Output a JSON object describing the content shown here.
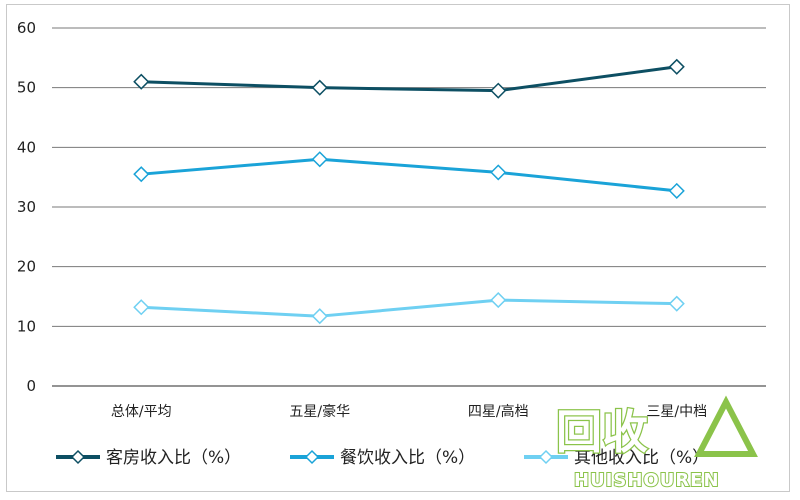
{
  "chart_data": {
    "type": "line",
    "categories": [
      "总体/平均",
      "五星/豪华",
      "四星/高档",
      "三星/中档"
    ],
    "series": [
      {
        "name": "客房收入比（%）",
        "values": [
          51.0,
          50.0,
          49.5,
          53.5
        ],
        "color": "#0d4f63"
      },
      {
        "name": "餐饮收入比（%）",
        "values": [
          35.5,
          38.0,
          35.8,
          32.7
        ],
        "color": "#1aa3d8"
      },
      {
        "name": "其他收入比（%）",
        "values": [
          13.2,
          11.7,
          14.4,
          13.8
        ],
        "color": "#6fd0f2"
      }
    ],
    "ylim": [
      0,
      60
    ],
    "yticks": [
      0,
      10,
      20,
      30,
      40,
      50,
      60
    ],
    "grid": true,
    "legend_position": "bottom",
    "title": "",
    "xlabel": "",
    "ylabel": ""
  },
  "watermark": {
    "text_main": "回收",
    "text_sub": "HUISHOUREN",
    "color": "#8bc34a",
    "icon": "recycle-triangle-icon"
  }
}
